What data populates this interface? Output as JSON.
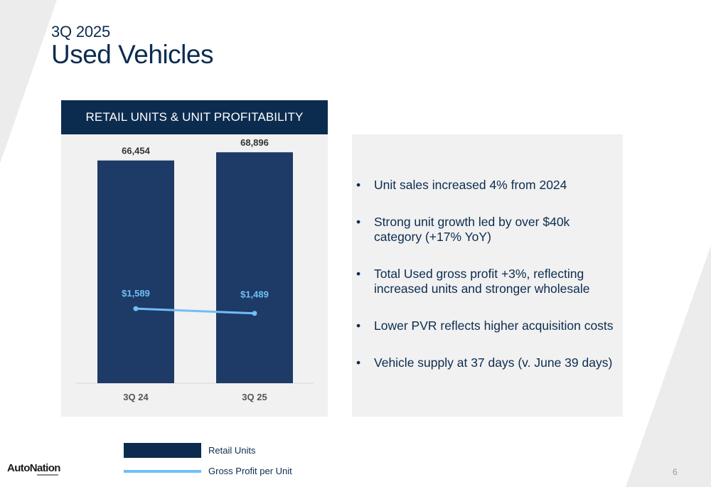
{
  "header": {
    "supertitle": "3Q 2025",
    "title": "Used Vehicles"
  },
  "panel": {
    "title": "RETAIL UNITS & UNIT PROFITABILITY"
  },
  "chart_data": {
    "type": "bar",
    "categories": [
      "3Q 24",
      "3Q 25"
    ],
    "series": [
      {
        "name": "Retail Units",
        "type": "bar",
        "values": [
          66454,
          68896
        ],
        "labels": [
          "66,454",
          "68,896"
        ],
        "color": "#1e3a66"
      },
      {
        "name": "Gross Profit per Unit",
        "type": "line",
        "values": [
          1589,
          1489
        ],
        "labels": [
          "$1,589",
          "$1,489"
        ],
        "color": "#6fbff5"
      }
    ],
    "title": "RETAIL UNITS & UNIT PROFITABILITY",
    "xlabel": "",
    "ylabel": "",
    "ylim": [
      0,
      70000
    ],
    "ylim_line": [
      0,
      5000
    ],
    "grid": false,
    "legend": "bottom"
  },
  "bullets": [
    "Unit sales increased 4% from 2024",
    "Strong unit growth led by over $40k category (+17% YoY)",
    "Total Used gross profit +3%, reflecting increased units and stronger wholesale",
    "Lower PVR reflects higher acquisition costs",
    "Vehicle supply at 37 days (v. June 39 days)"
  ],
  "legend": {
    "bar_label": "Retail Units",
    "line_label": "Gross Profit per Unit"
  },
  "footer": {
    "logo": "AutoNation",
    "page_number": "6"
  },
  "colors": {
    "navy": "#0c2c4f",
    "bar": "#1e3a66",
    "line": "#6fbff5",
    "panel_bg": "#f1f1f1"
  }
}
